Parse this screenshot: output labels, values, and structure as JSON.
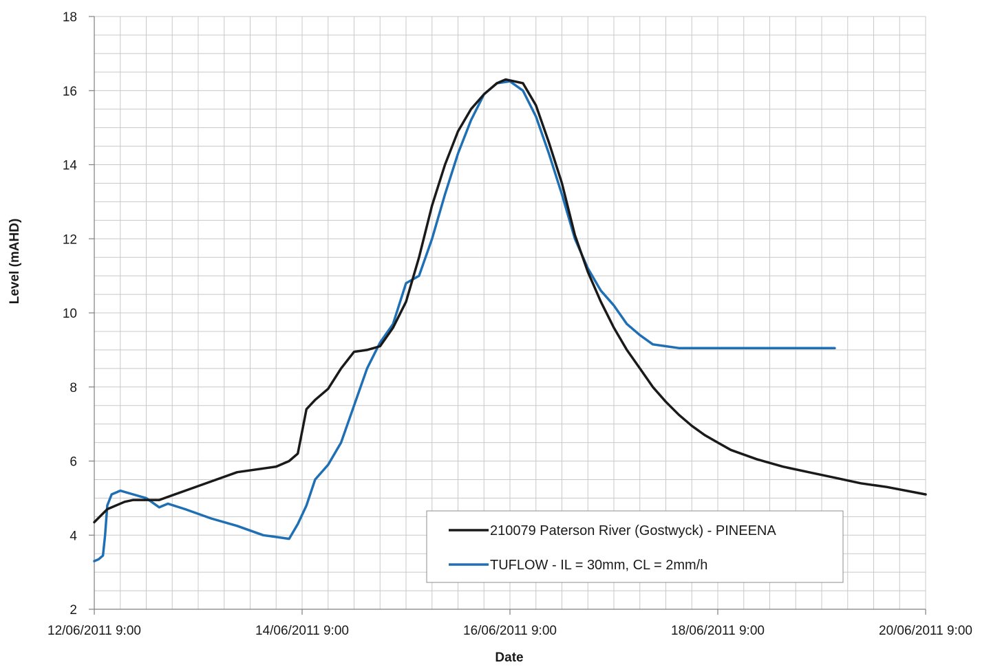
{
  "chart_data": {
    "type": "line",
    "title": "",
    "xlabel": "Date",
    "ylabel": "Level (mAHD)",
    "ylim": [
      2,
      18
    ],
    "xlim": [
      "2011-06-12 09:00",
      "2011-06-20 09:00"
    ],
    "x_ticks": [
      "12/06/2011 9:00",
      "14/06/2011 9:00",
      "16/06/2011 9:00",
      "18/06/2011 9:00",
      "20/06/2011 9:00"
    ],
    "y_ticks": [
      "2",
      "4",
      "6",
      "8",
      "10",
      "12",
      "14",
      "16",
      "18"
    ],
    "grid": true,
    "legend_position": "bottom-right",
    "series": [
      {
        "name": "210079 Paterson River (Gostwyck) - PINEENA",
        "color": "#1a1a1a",
        "points": [
          [
            "2011-06-12 09:00",
            4.35
          ],
          [
            "2011-06-12 12:00",
            4.7
          ],
          [
            "2011-06-12 16:00",
            4.9
          ],
          [
            "2011-06-12 18:00",
            4.95
          ],
          [
            "2011-06-13 00:00",
            4.95
          ],
          [
            "2011-06-13 06:00",
            5.2
          ],
          [
            "2011-06-13 12:00",
            5.45
          ],
          [
            "2011-06-13 18:00",
            5.7
          ],
          [
            "2011-06-14 00:00",
            5.8
          ],
          [
            "2011-06-14 03:00",
            5.85
          ],
          [
            "2011-06-14 06:00",
            6.0
          ],
          [
            "2011-06-14 08:00",
            6.2
          ],
          [
            "2011-06-14 09:00",
            6.8
          ],
          [
            "2011-06-14 10:00",
            7.4
          ],
          [
            "2011-06-14 12:00",
            7.65
          ],
          [
            "2011-06-14 15:00",
            7.95
          ],
          [
            "2011-06-14 18:00",
            8.5
          ],
          [
            "2011-06-14 21:00",
            8.95
          ],
          [
            "2011-06-15 00:00",
            9.0
          ],
          [
            "2011-06-15 03:00",
            9.1
          ],
          [
            "2011-06-15 06:00",
            9.6
          ],
          [
            "2011-06-15 09:00",
            10.3
          ],
          [
            "2011-06-15 12:00",
            11.5
          ],
          [
            "2011-06-15 15:00",
            12.9
          ],
          [
            "2011-06-15 18:00",
            14.0
          ],
          [
            "2011-06-15 21:00",
            14.9
          ],
          [
            "2011-06-16 00:00",
            15.5
          ],
          [
            "2011-06-16 03:00",
            15.9
          ],
          [
            "2011-06-16 06:00",
            16.2
          ],
          [
            "2011-06-16 08:00",
            16.3
          ],
          [
            "2011-06-16 12:00",
            16.2
          ],
          [
            "2011-06-16 15:00",
            15.6
          ],
          [
            "2011-06-16 18:00",
            14.6
          ],
          [
            "2011-06-16 21:00",
            13.5
          ],
          [
            "2011-06-17 00:00",
            12.1
          ],
          [
            "2011-06-17 03:00",
            11.1
          ],
          [
            "2011-06-17 06:00",
            10.3
          ],
          [
            "2011-06-17 09:00",
            9.6
          ],
          [
            "2011-06-17 12:00",
            9.0
          ],
          [
            "2011-06-17 15:00",
            8.5
          ],
          [
            "2011-06-17 18:00",
            8.0
          ],
          [
            "2011-06-17 21:00",
            7.6
          ],
          [
            "2011-06-18 00:00",
            7.25
          ],
          [
            "2011-06-18 03:00",
            6.95
          ],
          [
            "2011-06-18 06:00",
            6.7
          ],
          [
            "2011-06-18 09:00",
            6.5
          ],
          [
            "2011-06-18 12:00",
            6.3
          ],
          [
            "2011-06-18 18:00",
            6.05
          ],
          [
            "2011-06-19 00:00",
            5.85
          ],
          [
            "2011-06-19 06:00",
            5.7
          ],
          [
            "2011-06-19 12:00",
            5.55
          ],
          [
            "2011-06-19 18:00",
            5.4
          ],
          [
            "2011-06-20 00:00",
            5.3
          ],
          [
            "2011-06-20 09:00",
            5.1
          ]
        ]
      },
      {
        "name": "TUFLOW - IL = 30mm, CL = 2mm/h",
        "color": "#1f6fb4",
        "points": [
          [
            "2011-06-12 09:00",
            3.3
          ],
          [
            "2011-06-12 10:00",
            3.35
          ],
          [
            "2011-06-12 11:00",
            3.45
          ],
          [
            "2011-06-12 11:30",
            4.0
          ],
          [
            "2011-06-12 12:00",
            4.8
          ],
          [
            "2011-06-12 13:00",
            5.1
          ],
          [
            "2011-06-12 15:00",
            5.2
          ],
          [
            "2011-06-12 18:00",
            5.1
          ],
          [
            "2011-06-12 21:00",
            5.0
          ],
          [
            "2011-06-13 00:00",
            4.75
          ],
          [
            "2011-06-13 02:00",
            4.85
          ],
          [
            "2011-06-13 06:00",
            4.7
          ],
          [
            "2011-06-13 12:00",
            4.45
          ],
          [
            "2011-06-13 18:00",
            4.25
          ],
          [
            "2011-06-14 00:00",
            4.0
          ],
          [
            "2011-06-14 03:00",
            3.95
          ],
          [
            "2011-06-14 06:00",
            3.9
          ],
          [
            "2011-06-14 08:00",
            4.3
          ],
          [
            "2011-06-14 10:00",
            4.8
          ],
          [
            "2011-06-14 12:00",
            5.5
          ],
          [
            "2011-06-14 15:00",
            5.9
          ],
          [
            "2011-06-14 18:00",
            6.5
          ],
          [
            "2011-06-14 21:00",
            7.5
          ],
          [
            "2011-06-15 00:00",
            8.5
          ],
          [
            "2011-06-15 03:00",
            9.2
          ],
          [
            "2011-06-15 06:00",
            9.7
          ],
          [
            "2011-06-15 09:00",
            10.8
          ],
          [
            "2011-06-15 12:00",
            11.0
          ],
          [
            "2011-06-15 15:00",
            12.0
          ],
          [
            "2011-06-15 18:00",
            13.2
          ],
          [
            "2011-06-15 21:00",
            14.3
          ],
          [
            "2011-06-16 00:00",
            15.2
          ],
          [
            "2011-06-16 03:00",
            15.9
          ],
          [
            "2011-06-16 06:00",
            16.2
          ],
          [
            "2011-06-16 09:00",
            16.25
          ],
          [
            "2011-06-16 12:00",
            16.0
          ],
          [
            "2011-06-16 15:00",
            15.3
          ],
          [
            "2011-06-16 18:00",
            14.3
          ],
          [
            "2011-06-16 21:00",
            13.2
          ],
          [
            "2011-06-17 00:00",
            12.0
          ],
          [
            "2011-06-17 03:00",
            11.2
          ],
          [
            "2011-06-17 06:00",
            10.6
          ],
          [
            "2011-06-17 09:00",
            10.2
          ],
          [
            "2011-06-17 12:00",
            9.7
          ],
          [
            "2011-06-17 15:00",
            9.4
          ],
          [
            "2011-06-17 18:00",
            9.15
          ],
          [
            "2011-06-17 21:00",
            9.1
          ],
          [
            "2011-06-18 00:00",
            9.05
          ],
          [
            "2011-06-18 06:00",
            9.05
          ],
          [
            "2011-06-18 12:00",
            9.05
          ],
          [
            "2011-06-18 18:00",
            9.05
          ],
          [
            "2011-06-19 00:00",
            9.05
          ],
          [
            "2011-06-19 06:00",
            9.05
          ],
          [
            "2011-06-19 12:00",
            9.05
          ]
        ]
      }
    ]
  }
}
